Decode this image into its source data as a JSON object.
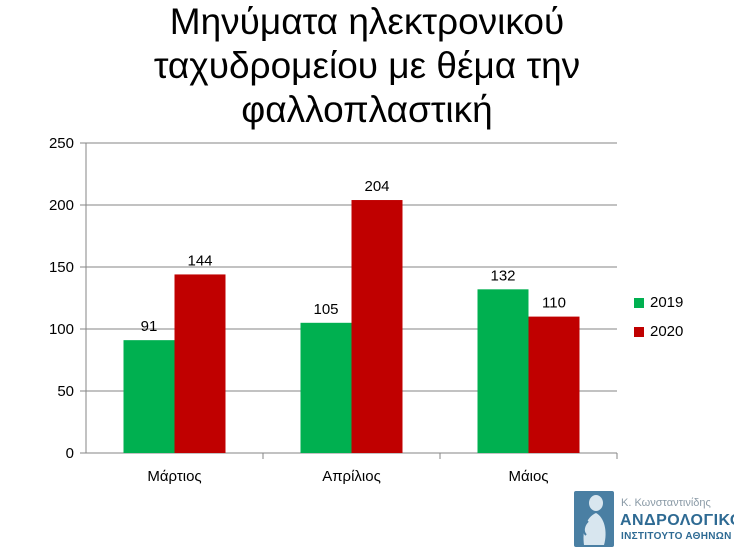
{
  "chart_data": {
    "type": "bar",
    "title_lines": [
      "Μηνύματα ηλεκτρονικού",
      "ταχυδρομείου με θέμα την",
      "φαλλοπλαστική"
    ],
    "categories": [
      "Μάρτιος",
      "Απρίλιος",
      "Μάιος"
    ],
    "series": [
      {
        "name": "2019",
        "values": [
          91,
          105,
          132
        ],
        "color": "#00b050"
      },
      {
        "name": "2020",
        "values": [
          144,
          204,
          110
        ],
        "color": "#c00000"
      }
    ],
    "ylim": [
      0,
      250
    ],
    "yticks": [
      0,
      50,
      100,
      150,
      200,
      250
    ],
    "grid": true,
    "legend": "right"
  },
  "logo": {
    "author": "Κ. Κωνσταντινίδης",
    "name": "ΑΝΔΡΟΛΟΓΙΚΟ",
    "sub": "ΙΝΣΤΙΤΟΥΤΟ ΑΘΗΝΩΝ"
  }
}
